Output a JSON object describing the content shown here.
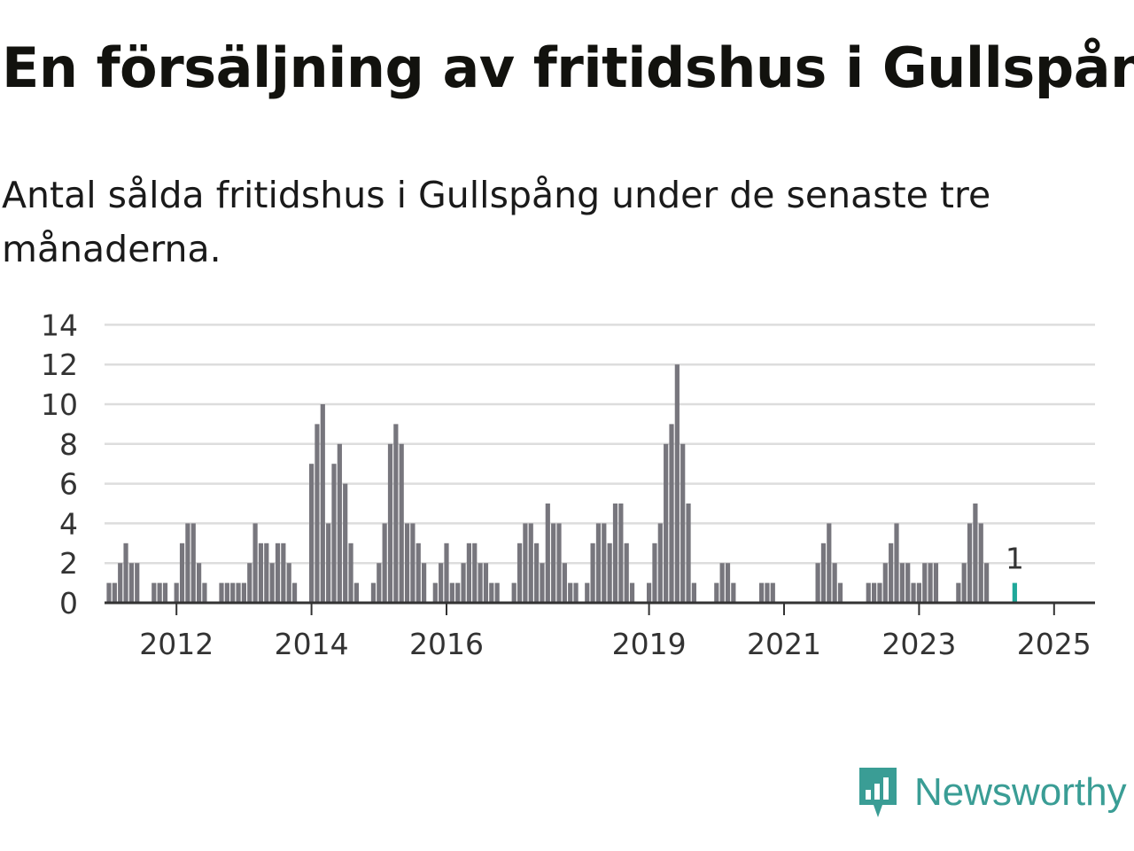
{
  "header": {
    "title": "En försäljning av fritidshus i Gullspång",
    "subtitle": "Antal sålda fritidshus i Gullspång under de senaste tre månaderna."
  },
  "brand": {
    "name": "Newsworthy",
    "icon": "newsworthy-logo-icon",
    "color": "#3a9d95"
  },
  "colors": {
    "bar": "#77767d",
    "highlight": "#1fa89a",
    "grid": "#dddddd",
    "axis": "#333333"
  },
  "chart_data": {
    "type": "bar",
    "x_start": "2011-01",
    "x_end": "2025-07",
    "ylim": [
      0,
      14
    ],
    "yticks": [
      0,
      2,
      4,
      6,
      8,
      10,
      12,
      14
    ],
    "xticks": [
      "2012",
      "2014",
      "2016",
      "2019",
      "2021",
      "2023",
      "2025"
    ],
    "grid": true,
    "annotation": "1",
    "highlight_index": 60,
    "series": [
      {
        "values": [
          1,
          1,
          2,
          3,
          2,
          2,
          0,
          0,
          1,
          1,
          1,
          0,
          1,
          3,
          4,
          4,
          2,
          1,
          0,
          0,
          1,
          1,
          1,
          1,
          1,
          2,
          4,
          3,
          3,
          2,
          3,
          3,
          2,
          1,
          0,
          0,
          7,
          9,
          10,
          4,
          7,
          8,
          6,
          3,
          1,
          0,
          0,
          1,
          2,
          4,
          8,
          9,
          8,
          4,
          4,
          3,
          2,
          0,
          1,
          2,
          3,
          1,
          1,
          2,
          3,
          3,
          2,
          2,
          1,
          1,
          0,
          0,
          1,
          3,
          4,
          4,
          3,
          2,
          5,
          4,
          4,
          2,
          1,
          1,
          0,
          1,
          3,
          4,
          4,
          3,
          5,
          5,
          3,
          1,
          0,
          0,
          1,
          3,
          4,
          8,
          9,
          12,
          8,
          5,
          1,
          0,
          0,
          0,
          1,
          2,
          2,
          1,
          0,
          0,
          0,
          0,
          1,
          1,
          1,
          0,
          0,
          0,
          0,
          0,
          0,
          0,
          2,
          3,
          4,
          2,
          1,
          0,
          0,
          0,
          0,
          1,
          1,
          1,
          2,
          3,
          4,
          2,
          2,
          1,
          1,
          2,
          2,
          2,
          0,
          0,
          0,
          1,
          2,
          4,
          5,
          4,
          2,
          0,
          0,
          0,
          0,
          1
        ]
      }
    ]
  }
}
